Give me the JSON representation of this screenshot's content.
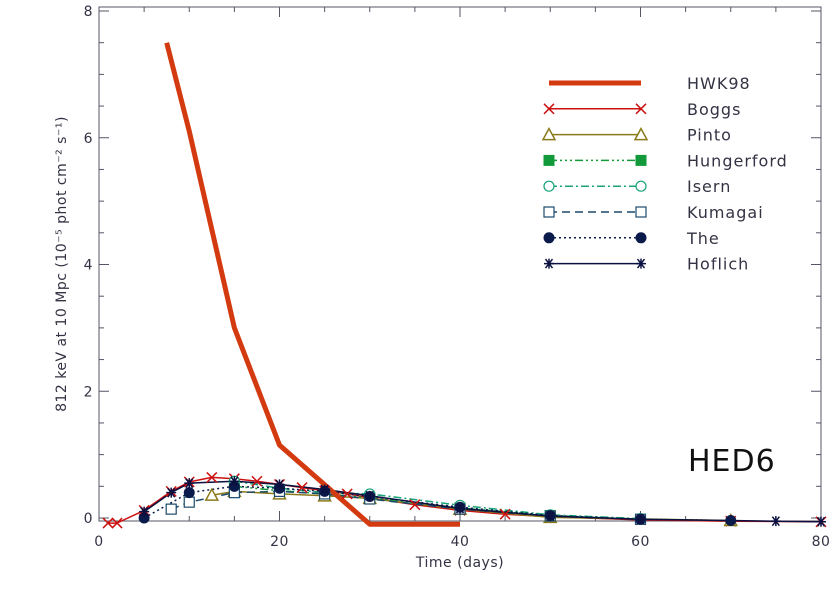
{
  "chart_data": {
    "type": "line",
    "xlabel": "Time (days)",
    "ylabel": "812 keV at 10 Mpc (10⁻⁵ phot cm⁻² s⁻¹)",
    "xlim": [
      0,
      80
    ],
    "ylim": [
      0,
      8
    ],
    "xticks": [
      0,
      20,
      40,
      60,
      80
    ],
    "yticks": [
      0,
      2,
      4,
      6,
      8
    ],
    "annotation": "HED6",
    "legend_position": "top-right",
    "grid": false,
    "series": [
      {
        "name": "HWK98",
        "color": "#d43a10",
        "dash": "",
        "marker": "none",
        "width": 5,
        "x": [
          7.5,
          10,
          15,
          20,
          30,
          40
        ],
        "y": [
          7.5,
          6.1,
          3.0,
          1.15,
          -0.1,
          -0.1
        ]
      },
      {
        "name": "Boggs",
        "color": "#cc1111",
        "dash": "",
        "marker": "x",
        "width": 1.5,
        "x": [
          1,
          2,
          5,
          8,
          10,
          12.5,
          15,
          17.5,
          20,
          22.5,
          25,
          27.5,
          30,
          35,
          40,
          45,
          50,
          60,
          70,
          80
        ],
        "y": [
          -0.08,
          -0.08,
          0.12,
          0.42,
          0.57,
          0.64,
          0.62,
          0.58,
          0.53,
          0.48,
          0.43,
          0.38,
          0.32,
          0.21,
          0.12,
          0.06,
          0.02,
          -0.03,
          -0.05,
          -0.06
        ]
      },
      {
        "name": "Pinto",
        "color": "#8a7a1a",
        "dash": "",
        "marker": "triangle",
        "width": 1.5,
        "x": [
          12.5,
          15,
          20,
          25,
          30,
          40,
          50,
          70
        ],
        "y": [
          0.36,
          0.42,
          0.38,
          0.35,
          0.31,
          0.14,
          0.01,
          -0.04
        ]
      },
      {
        "name": "Hungerford",
        "color": "#129a3a",
        "dash": "8 3 2 3 2 3 2 3",
        "marker": "square-filled",
        "width": 1.5,
        "x": [
          15,
          20,
          25,
          30,
          40,
          50,
          60
        ],
        "y": [
          0.5,
          0.43,
          0.38,
          0.32,
          0.16,
          0.04,
          -0.02
        ]
      },
      {
        "name": "Isern",
        "color": "#18a37a",
        "dash": "8 3 2 3",
        "marker": "circle-open",
        "width": 1.5,
        "x": [
          15,
          20,
          25,
          30,
          40,
          50,
          60
        ],
        "y": [
          0.58,
          0.47,
          0.4,
          0.38,
          0.2,
          0.05,
          -0.01
        ]
      },
      {
        "name": "Kumagai",
        "color": "#1c4a6a",
        "dash": "8 5",
        "marker": "square-open",
        "width": 1.5,
        "x": [
          8,
          10,
          15,
          20,
          25,
          30,
          40,
          50,
          60
        ],
        "y": [
          0.14,
          0.25,
          0.4,
          0.42,
          0.38,
          0.3,
          0.14,
          0.03,
          -0.02
        ]
      },
      {
        "name": "The",
        "color": "#0a1a4a",
        "dash": "2 3",
        "marker": "circle-filled",
        "width": 1.5,
        "x": [
          5,
          10,
          15,
          20,
          25,
          30,
          40,
          50,
          60,
          70
        ],
        "y": [
          0.0,
          0.4,
          0.5,
          0.47,
          0.42,
          0.34,
          0.17,
          0.04,
          -0.02,
          -0.04
        ]
      },
      {
        "name": "Hoflich",
        "color": "#0a1040",
        "dash": "",
        "marker": "asterisk",
        "width": 1.5,
        "x": [
          5,
          8,
          10,
          15,
          20,
          25,
          30,
          40,
          50,
          60,
          75,
          80
        ],
        "y": [
          0.1,
          0.4,
          0.55,
          0.58,
          0.53,
          0.45,
          0.35,
          0.15,
          0.03,
          -0.02,
          -0.05,
          -0.06
        ]
      }
    ]
  }
}
